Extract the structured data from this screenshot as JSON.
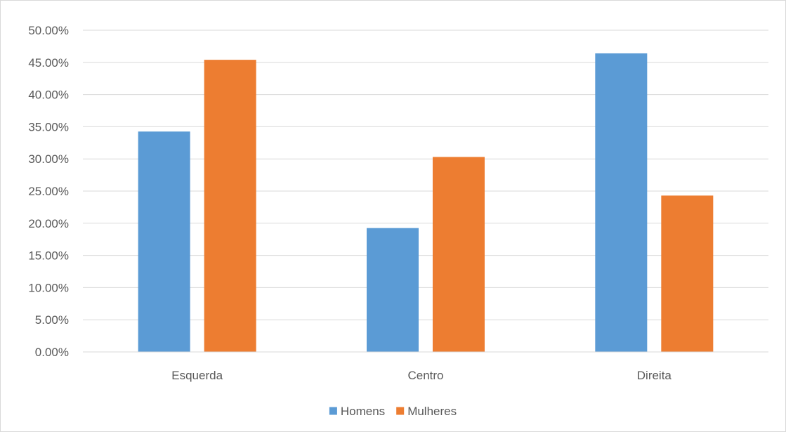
{
  "chart_data": {
    "type": "bar",
    "categories": [
      "Esquerda",
      "Centro",
      "Direita"
    ],
    "series": [
      {
        "name": "Homens",
        "values": [
          0.3425,
          0.1925,
          0.464
        ],
        "color": "#5b9bd5"
      },
      {
        "name": "Mulheres",
        "values": [
          0.454,
          0.303,
          0.243
        ],
        "color": "#ed7d31"
      }
    ],
    "ylim": [
      0,
      0.5
    ],
    "ytick_step": 0.05,
    "ytick_labels": [
      "0.00%",
      "5.00%",
      "10.00%",
      "15.00%",
      "20.00%",
      "25.00%",
      "30.00%",
      "35.00%",
      "40.00%",
      "45.00%",
      "50.00%"
    ],
    "grid": true,
    "legend_position": "bottom",
    "title": "",
    "xlabel": "",
    "ylabel": ""
  }
}
